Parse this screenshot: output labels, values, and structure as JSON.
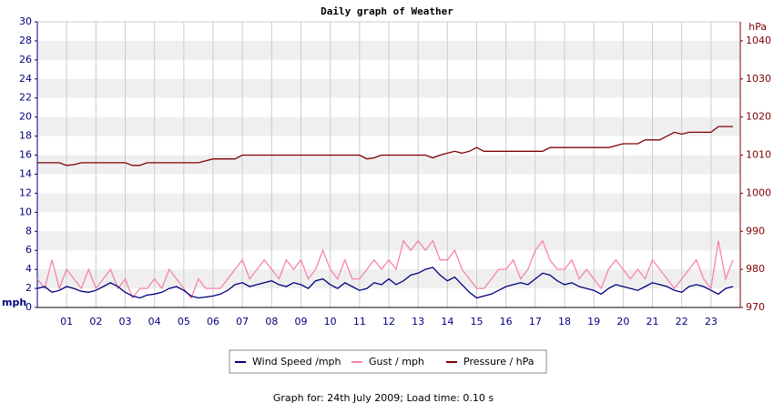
{
  "chart_data": {
    "type": "line",
    "title": "Daily graph of Weather",
    "y_label": "mph",
    "y2_label": "hPa",
    "footer": "Graph for: 24th July 2009; Load time: 0.10 s",
    "x": [
      0,
      0.25,
      0.5,
      0.75,
      1,
      1.25,
      1.5,
      1.75,
      2,
      2.25,
      2.5,
      2.75,
      3,
      3.25,
      3.5,
      3.75,
      4,
      4.25,
      4.5,
      4.75,
      5,
      5.25,
      5.5,
      5.75,
      6,
      6.25,
      6.5,
      6.75,
      7,
      7.25,
      7.5,
      7.75,
      8,
      8.25,
      8.5,
      8.75,
      9,
      9.25,
      9.5,
      9.75,
      10,
      10.25,
      10.5,
      10.75,
      11,
      11.25,
      11.5,
      11.75,
      12,
      12.25,
      12.5,
      12.75,
      13,
      13.25,
      13.5,
      13.75,
      14,
      14.25,
      14.5,
      14.75,
      15,
      15.25,
      15.5,
      15.75,
      16,
      16.25,
      16.5,
      16.75,
      17,
      17.25,
      17.5,
      17.75,
      18,
      18.25,
      18.5,
      18.75,
      19,
      19.25,
      19.5,
      19.75,
      20,
      20.25,
      20.5,
      20.75,
      21,
      21.25,
      21.5,
      21.75,
      22,
      22.25,
      22.5,
      22.75,
      23,
      23.25,
      23.5,
      23.75
    ],
    "xlim": [
      0,
      24
    ],
    "xticks": [
      {
        "value": 1,
        "label": "01"
      },
      {
        "value": 2,
        "label": "02"
      },
      {
        "value": 3,
        "label": "03"
      },
      {
        "value": 4,
        "label": "04"
      },
      {
        "value": 5,
        "label": "05"
      },
      {
        "value": 6,
        "label": "06"
      },
      {
        "value": 7,
        "label": "07"
      },
      {
        "value": 8,
        "label": "08"
      },
      {
        "value": 9,
        "label": "09"
      },
      {
        "value": 10,
        "label": "10"
      },
      {
        "value": 11,
        "label": "11"
      },
      {
        "value": 12,
        "label": "12"
      },
      {
        "value": 13,
        "label": "13"
      },
      {
        "value": 14,
        "label": "14"
      },
      {
        "value": 15,
        "label": "15"
      },
      {
        "value": 16,
        "label": "16"
      },
      {
        "value": 17,
        "label": "17"
      },
      {
        "value": 18,
        "label": "18"
      },
      {
        "value": 19,
        "label": "19"
      },
      {
        "value": 20,
        "label": "20"
      },
      {
        "value": 21,
        "label": "21"
      },
      {
        "value": 22,
        "label": "22"
      },
      {
        "value": 23,
        "label": "23"
      }
    ],
    "ylim": [
      0,
      30
    ],
    "yticks": [
      0,
      2,
      4,
      6,
      8,
      10,
      12,
      14,
      16,
      18,
      20,
      22,
      24,
      26,
      28,
      30
    ],
    "y2lim": [
      970,
      1045
    ],
    "y2ticks": [
      970,
      980,
      990,
      1000,
      1010,
      1020,
      1030,
      1040
    ],
    "grid": true,
    "legend": "bottom",
    "series": [
      {
        "name": "Wind Speed /mph",
        "color": "#000080",
        "values": [
          2,
          2.2,
          1.6,
          1.8,
          2.2,
          2,
          1.7,
          1.6,
          1.8,
          2.2,
          2.6,
          2.2,
          1.6,
          1.2,
          1,
          1.3,
          1.4,
          1.6,
          2,
          2.2,
          1.8,
          1.2,
          1,
          1.1,
          1.2,
          1.4,
          1.8,
          2.4,
          2.6,
          2.2,
          2.4,
          2.6,
          2.8,
          2.4,
          2.2,
          2.6,
          2.4,
          2,
          2.8,
          3,
          2.4,
          2,
          2.6,
          2.2,
          1.8,
          2,
          2.6,
          2.4,
          3,
          2.4,
          2.8,
          3.4,
          3.6,
          4,
          4.2,
          3.4,
          2.8,
          3.2,
          2.4,
          1.6,
          1,
          1.2,
          1.4,
          1.8,
          2.2,
          2.4,
          2.6,
          2.4,
          3,
          3.6,
          3.4,
          2.8,
          2.4,
          2.6,
          2.2,
          2,
          1.8,
          1.4,
          2,
          2.4,
          2.2,
          2,
          1.8,
          2.2,
          2.6,
          2.4,
          2.2,
          1.8,
          1.6,
          2.2,
          2.4,
          2.2,
          1.8,
          1.4,
          2,
          2.2
        ]
      },
      {
        "name": "Gust / mph",
        "color": "#f783ac",
        "values": [
          3,
          2,
          5,
          2,
          4,
          3,
          2,
          4,
          2,
          3,
          4,
          2,
          3,
          1,
          2,
          2,
          3,
          2,
          4,
          3,
          2,
          1,
          3,
          2,
          2,
          2,
          3,
          4,
          5,
          3,
          4,
          5,
          4,
          3,
          5,
          4,
          5,
          3,
          4,
          6,
          4,
          3,
          5,
          3,
          3,
          4,
          5,
          4,
          5,
          4,
          7,
          6,
          7,
          6,
          7,
          5,
          5,
          6,
          4,
          3,
          2,
          2,
          3,
          4,
          4,
          5,
          3,
          4,
          6,
          7,
          5,
          4,
          4,
          5,
          3,
          4,
          3,
          2,
          4,
          5,
          4,
          3,
          4,
          3,
          5,
          4,
          3,
          2,
          3,
          4,
          5,
          3,
          2,
          7,
          3,
          5
        ]
      },
      {
        "name": "Pressure / hPa",
        "color": "#800000",
        "axis": "y2",
        "values": [
          1008,
          1008,
          1008,
          1008,
          1007.3,
          1007.5,
          1008,
          1008,
          1008,
          1008,
          1008,
          1008,
          1008,
          1007.3,
          1007.3,
          1008,
          1008,
          1008,
          1008,
          1008,
          1008,
          1008,
          1008,
          1008.5,
          1009,
          1009,
          1009,
          1009,
          1010,
          1010,
          1010,
          1010,
          1010,
          1010,
          1010,
          1010,
          1010,
          1010,
          1010,
          1010,
          1010,
          1010,
          1010,
          1010,
          1010,
          1009,
          1009.3,
          1010,
          1010,
          1010,
          1010,
          1010,
          1010,
          1010,
          1009.3,
          1010,
          1010.5,
          1011,
          1010.5,
          1011,
          1012,
          1011,
          1011,
          1011,
          1011,
          1011,
          1011,
          1011,
          1011,
          1011,
          1012,
          1012,
          1012,
          1012,
          1012,
          1012,
          1012,
          1012,
          1012,
          1012.5,
          1013,
          1013,
          1013,
          1014,
          1014,
          1014,
          1015,
          1016,
          1015.5,
          1016,
          1016,
          1016,
          1016,
          1017.5,
          1017.5,
          1017.5
        ]
      }
    ]
  }
}
